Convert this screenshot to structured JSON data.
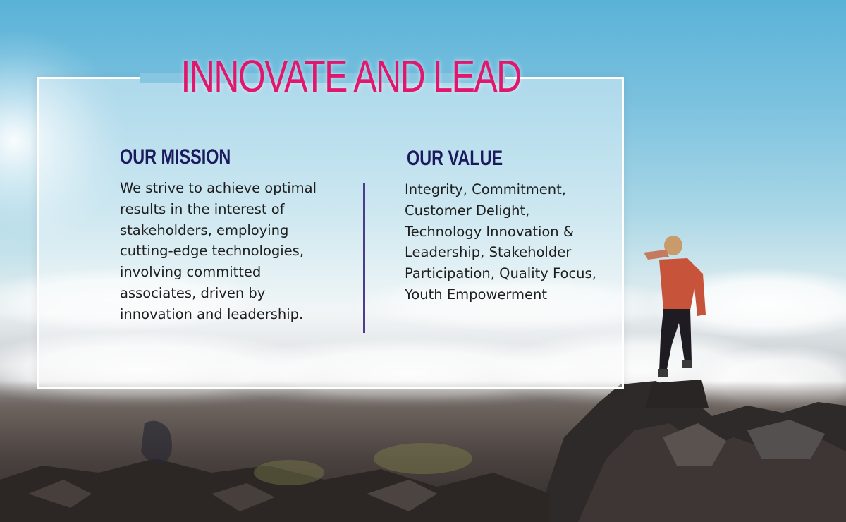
{
  "banner": {
    "title": "INNOVATE AND LEAD",
    "accent_color": "#e0176c",
    "heading_color": "#1c1a5e"
  },
  "mission": {
    "heading": "OUR MISSION",
    "lines": [
      "We strive to achieve optimal",
      "results in the interest of",
      "stakeholders, employing",
      "cutting-edge technologies,",
      "involving committed",
      "associates, driven by",
      "innovation and leadership."
    ]
  },
  "value": {
    "heading": "OUR VALUE",
    "lines": [
      "Integrity, Commitment,",
      "Customer Delight,",
      "Technology Innovation &",
      "Leadership, Stakeholder",
      "Participation, Quality Focus,",
      "Youth Empowerment"
    ]
  }
}
